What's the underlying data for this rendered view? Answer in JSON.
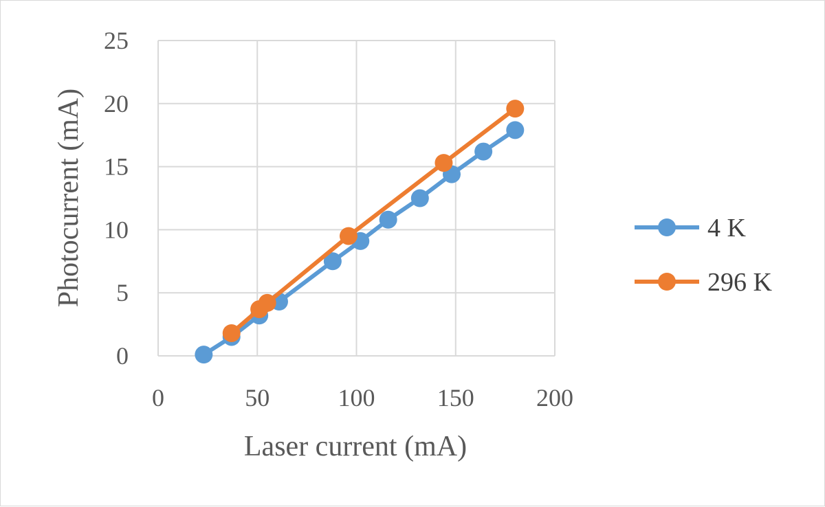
{
  "chart_data": {
    "type": "line",
    "title": "",
    "xlabel": "Laser current (mA)",
    "ylabel": "Photocurrent (mA)",
    "xlim": [
      0,
      200
    ],
    "ylim": [
      0,
      25
    ],
    "xticks": [
      "0",
      "50",
      "100",
      "150",
      "200"
    ],
    "yticks": [
      "0",
      "5",
      "10",
      "15",
      "20",
      "25"
    ],
    "grid": true,
    "legend_position": "right",
    "series": [
      {
        "name": "4 K",
        "color": "#5b9bd5",
        "x": [
          23,
          37,
          51,
          61,
          88,
          102,
          116,
          132,
          148,
          164,
          180
        ],
        "y": [
          0.1,
          1.5,
          3.2,
          4.3,
          7.5,
          9.1,
          10.8,
          12.5,
          14.4,
          16.2,
          17.9
        ]
      },
      {
        "name": "296 K",
        "color": "#ed7d31",
        "x": [
          37,
          51,
          55,
          96,
          144,
          180
        ],
        "y": [
          1.8,
          3.7,
          4.2,
          9.5,
          15.3,
          19.6
        ]
      }
    ]
  }
}
